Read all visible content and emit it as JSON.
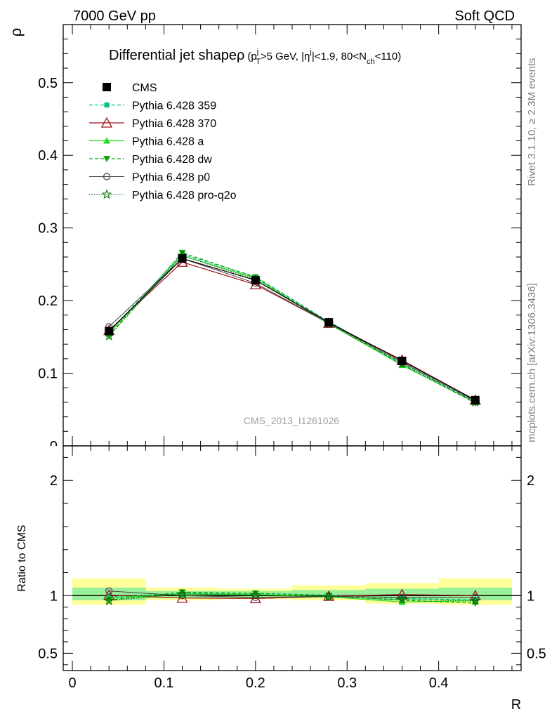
{
  "header": {
    "left": "7000 GeV pp",
    "right": "Soft QCD"
  },
  "side_labels": {
    "rivet": "Rivet 3.1.10, ≥ 2.3M events",
    "mcplots": "mcplots.cern.ch [arXiv:1306.3436]"
  },
  "watermark": "CMS_2013_I1261026",
  "colors": {
    "cms": "#000000",
    "p359": "#00c07a",
    "p370": "#a01018",
    "a": "#22dd22",
    "dw": "#10a010",
    "p0": "#444444",
    "proq2o": "#007000",
    "band_outer": "#ffff99",
    "band_inner": "#99ee99"
  },
  "chart_data": [
    {
      "type": "line",
      "title_main": "Differential jet shapeρ",
      "title_sub": "(p_T^j>5 GeV, |η^j|<1.9, 80<N_ch<110)",
      "ylabel": "ρ",
      "xlim": [
        -0.01,
        0.49
      ],
      "ylim": [
        0,
        0.58
      ],
      "yticks": [
        0.1,
        0.2,
        0.3,
        0.4,
        0.5
      ],
      "ytick_labels": [
        "0.1",
        "0.2",
        "0.3",
        "0.4",
        "0.5"
      ],
      "x": [
        0.04,
        0.12,
        0.2,
        0.28,
        0.36,
        0.44
      ],
      "series": [
        {
          "key": "cms",
          "name": "CMS",
          "values": [
            0.158,
            0.258,
            0.228,
            0.17,
            0.117,
            0.063
          ]
        },
        {
          "key": "p359",
          "name": "Pythia 6.428 359",
          "values": [
            0.157,
            0.264,
            0.233,
            0.171,
            0.114,
            0.061
          ]
        },
        {
          "key": "p370",
          "name": "Pythia 6.428 370",
          "values": [
            0.159,
            0.253,
            0.222,
            0.169,
            0.118,
            0.063
          ]
        },
        {
          "key": "a",
          "name": "Pythia 6.428 a",
          "values": [
            0.155,
            0.262,
            0.231,
            0.168,
            0.111,
            0.06
          ]
        },
        {
          "key": "dw",
          "name": "Pythia 6.428 dw",
          "values": [
            0.152,
            0.266,
            0.232,
            0.17,
            0.112,
            0.059
          ]
        },
        {
          "key": "p0",
          "name": "Pythia 6.428 p0",
          "values": [
            0.164,
            0.258,
            0.224,
            0.169,
            0.115,
            0.062
          ]
        },
        {
          "key": "proq2o",
          "name": "Pythia 6.428 pro-q2o",
          "values": [
            0.151,
            0.262,
            0.229,
            0.168,
            0.113,
            0.06
          ]
        }
      ]
    },
    {
      "type": "line",
      "ylabel": "Ratio to CMS",
      "xlabel": "R",
      "xlim": [
        -0.01,
        0.49
      ],
      "ylim": [
        0.35,
        2.3
      ],
      "yticks": [
        0.5,
        1,
        2
      ],
      "ytick_labels": [
        "0.5",
        "1",
        "2"
      ],
      "xticks": [
        0,
        0.1,
        0.2,
        0.3,
        0.4
      ],
      "xtick_labels": [
        "0",
        "0.1",
        "0.2",
        "0.3",
        "0.4"
      ],
      "bins": [
        [
          0.0,
          0.08
        ],
        [
          0.08,
          0.16
        ],
        [
          0.16,
          0.24
        ],
        [
          0.24,
          0.32
        ],
        [
          0.32,
          0.4
        ],
        [
          0.4,
          0.48
        ]
      ],
      "band_outer": [
        [
          0.92,
          1.15
        ],
        [
          0.96,
          1.07
        ],
        [
          0.97,
          1.06
        ],
        [
          0.96,
          1.09
        ],
        [
          0.93,
          1.11
        ],
        [
          0.92,
          1.15
        ]
      ],
      "band_inner": [
        [
          0.96,
          1.07
        ],
        [
          0.98,
          1.04
        ],
        [
          0.98,
          1.04
        ],
        [
          0.98,
          1.05
        ],
        [
          0.96,
          1.06
        ],
        [
          0.96,
          1.07
        ]
      ],
      "x": [
        0.04,
        0.12,
        0.2,
        0.28,
        0.36,
        0.44
      ],
      "series": [
        {
          "key": "p359",
          "name": "Pythia 6.428 359",
          "values": [
            0.99,
            1.02,
            1.02,
            1.005,
            0.975,
            0.965
          ]
        },
        {
          "key": "p370",
          "name": "Pythia 6.428 370",
          "values": [
            1.005,
            0.98,
            0.975,
            0.995,
            1.01,
            1.0
          ]
        },
        {
          "key": "a",
          "name": "Pythia 6.428 a",
          "values": [
            0.98,
            1.015,
            1.01,
            0.99,
            0.945,
            0.955
          ]
        },
        {
          "key": "dw",
          "name": "Pythia 6.428 dw",
          "values": [
            0.962,
            1.03,
            1.02,
            1.0,
            0.96,
            0.935
          ]
        },
        {
          "key": "p0",
          "name": "Pythia 6.428 p0",
          "values": [
            1.04,
            1.0,
            0.985,
            0.995,
            0.985,
            0.985
          ]
        },
        {
          "key": "proq2o",
          "name": "Pythia 6.428 pro-q2o",
          "values": [
            0.955,
            1.015,
            1.005,
            0.99,
            0.965,
            0.955
          ]
        }
      ]
    }
  ]
}
